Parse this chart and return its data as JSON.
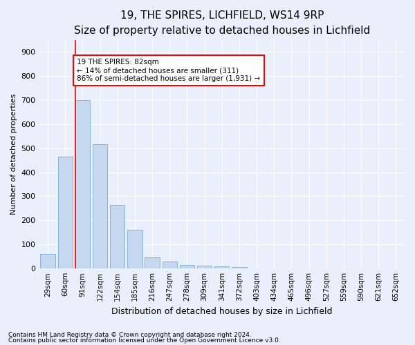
{
  "title": "19, THE SPIRES, LICHFIELD, WS14 9RP",
  "subtitle": "Size of property relative to detached houses in Lichfield",
  "xlabel": "Distribution of detached houses by size in Lichfield",
  "ylabel": "Number of detached properties",
  "bar_color": "#c5d8f0",
  "bar_edge_color": "#7aadd4",
  "categories": [
    "29sqm",
    "60sqm",
    "91sqm",
    "122sqm",
    "154sqm",
    "185sqm",
    "216sqm",
    "247sqm",
    "278sqm",
    "309sqm",
    "341sqm",
    "372sqm",
    "403sqm",
    "434sqm",
    "465sqm",
    "496sqm",
    "527sqm",
    "559sqm",
    "590sqm",
    "621sqm",
    "652sqm"
  ],
  "values": [
    60,
    465,
    700,
    515,
    265,
    160,
    45,
    30,
    15,
    12,
    8,
    5,
    0,
    0,
    0,
    0,
    0,
    0,
    0,
    0,
    0
  ],
  "ylim": [
    0,
    950
  ],
  "yticks": [
    0,
    100,
    200,
    300,
    400,
    500,
    600,
    700,
    800,
    900
  ],
  "marker_label_line1": "19 THE SPIRES: 82sqm",
  "marker_label_line2": "← 14% of detached houses are smaller (311)",
  "marker_label_line3": "86% of semi-detached houses are larger (1,931) →",
  "vline_bin_index": 2,
  "footer1": "Contains HM Land Registry data © Crown copyright and database right 2024.",
  "footer2": "Contains public sector information licensed under the Open Government Licence v3.0.",
  "background_color": "#eaf0fb",
  "grid_color": "#ffffff",
  "title_fontsize": 11,
  "subtitle_fontsize": 9,
  "ylabel_fontsize": 8,
  "xlabel_fontsize": 9,
  "tick_fontsize": 7.5,
  "ytick_fontsize": 8
}
